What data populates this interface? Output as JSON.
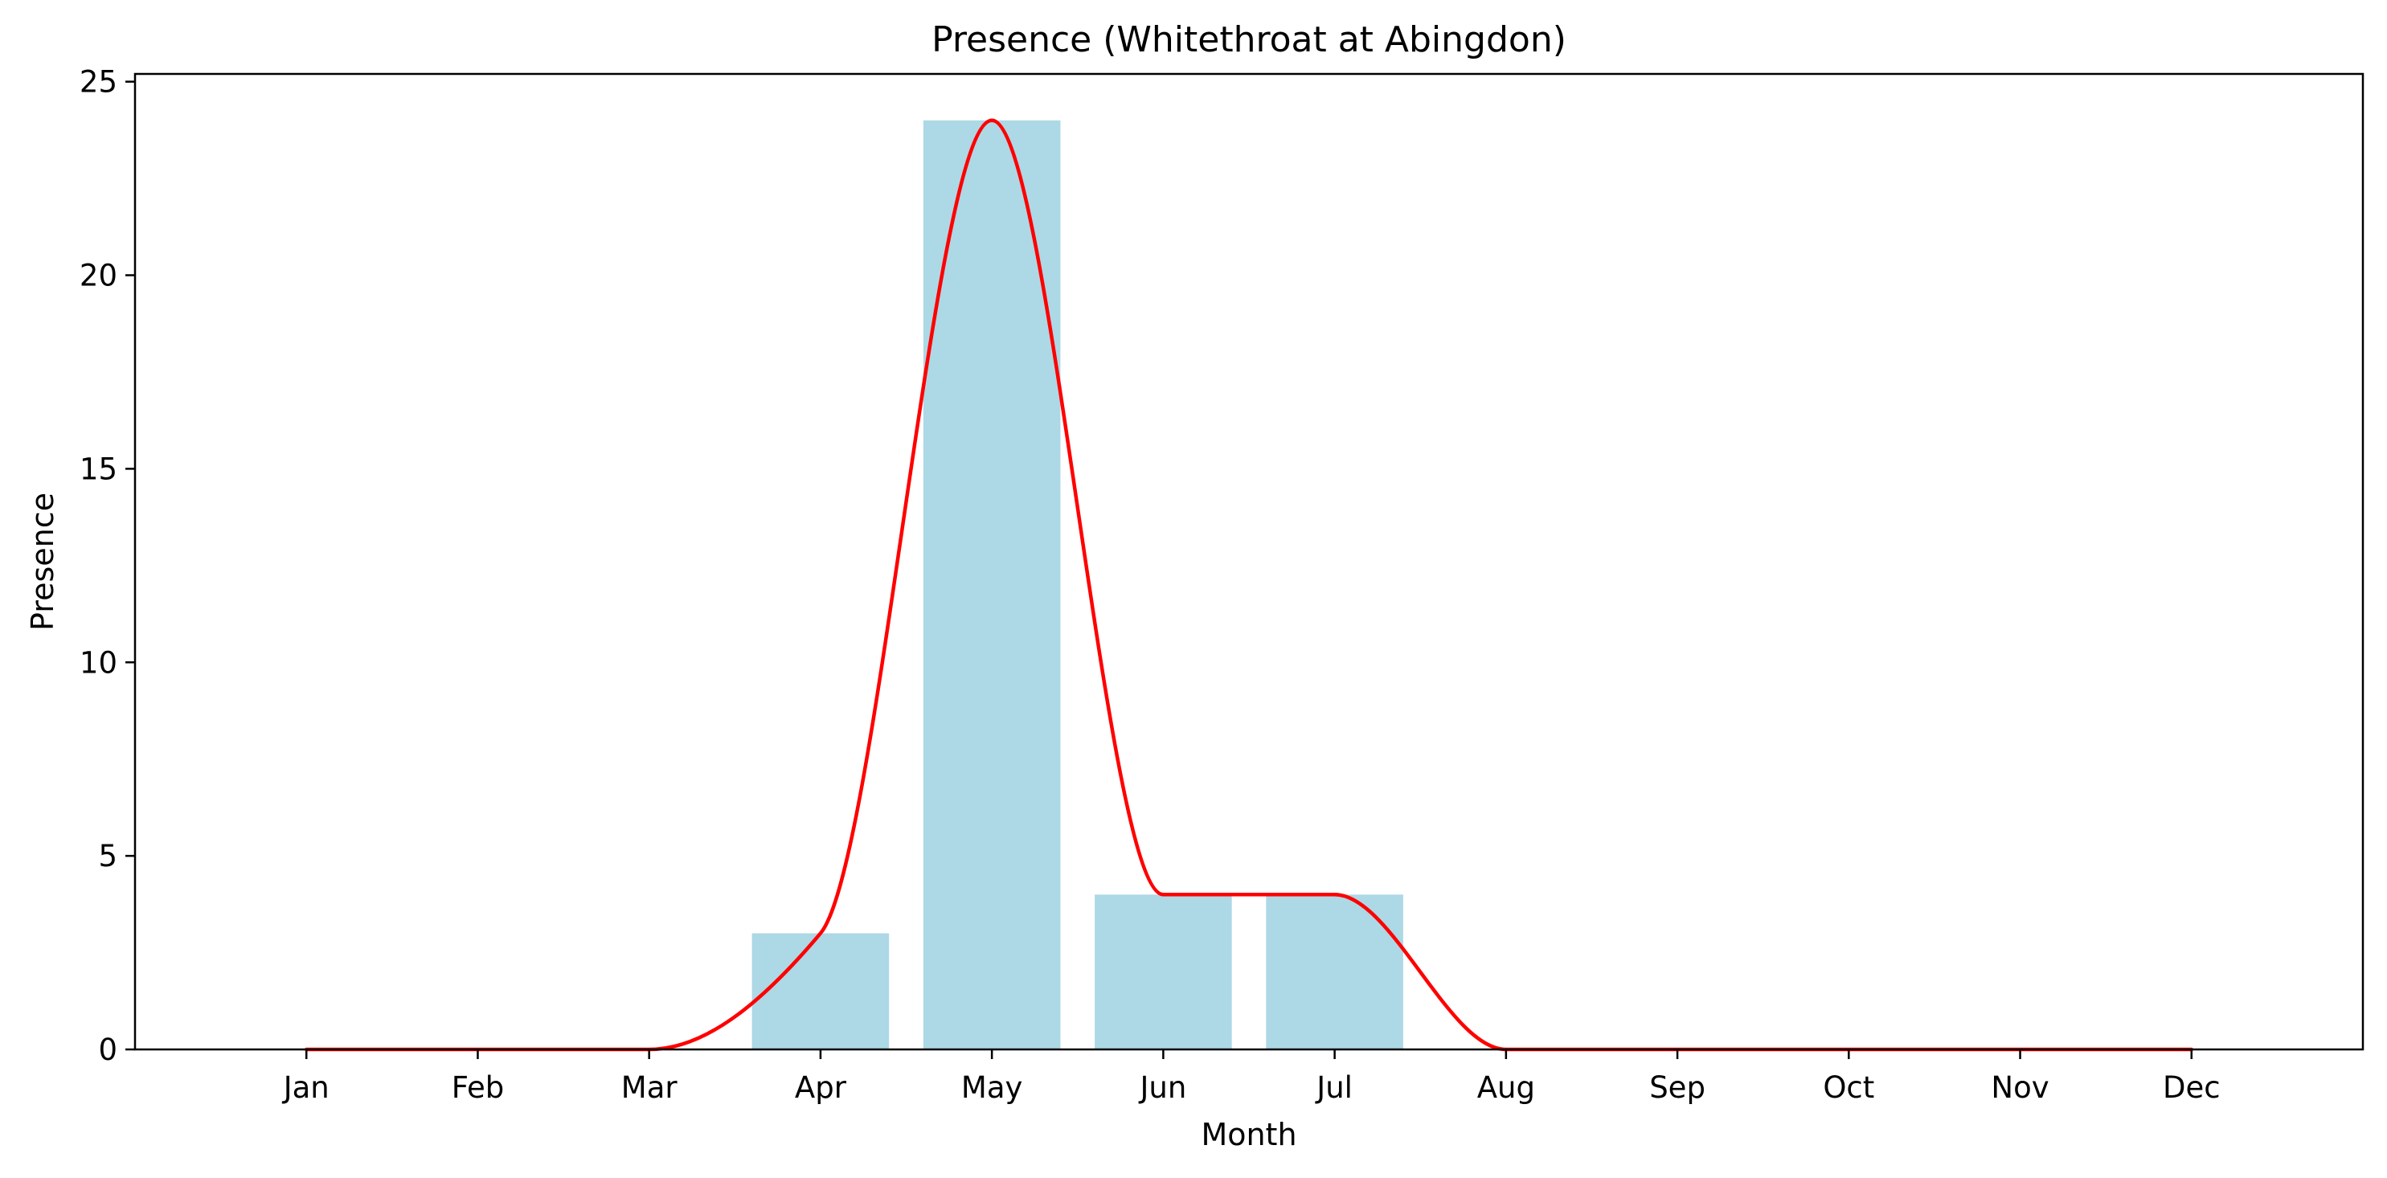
{
  "chart_data": {
    "type": "bar",
    "title": "Presence (Whitethroat at Abingdon)",
    "xlabel": "Month",
    "ylabel": "Presence",
    "categories": [
      "Jan",
      "Feb",
      "Mar",
      "Apr",
      "May",
      "Jun",
      "Jul",
      "Aug",
      "Sep",
      "Oct",
      "Nov",
      "Dec"
    ],
    "values": [
      0,
      0,
      0,
      3,
      24,
      4,
      4,
      0,
      0,
      0,
      0,
      0
    ],
    "ylim": [
      0,
      25.2
    ],
    "yticks": [
      0,
      5,
      10,
      15,
      20,
      25
    ],
    "xlim": [
      -1,
      12
    ],
    "grid": false,
    "legend": "none",
    "smooth_line": {
      "style": "smoothed line through monthly values",
      "color": "#ff0000"
    },
    "bar_color": "#add8e6"
  }
}
